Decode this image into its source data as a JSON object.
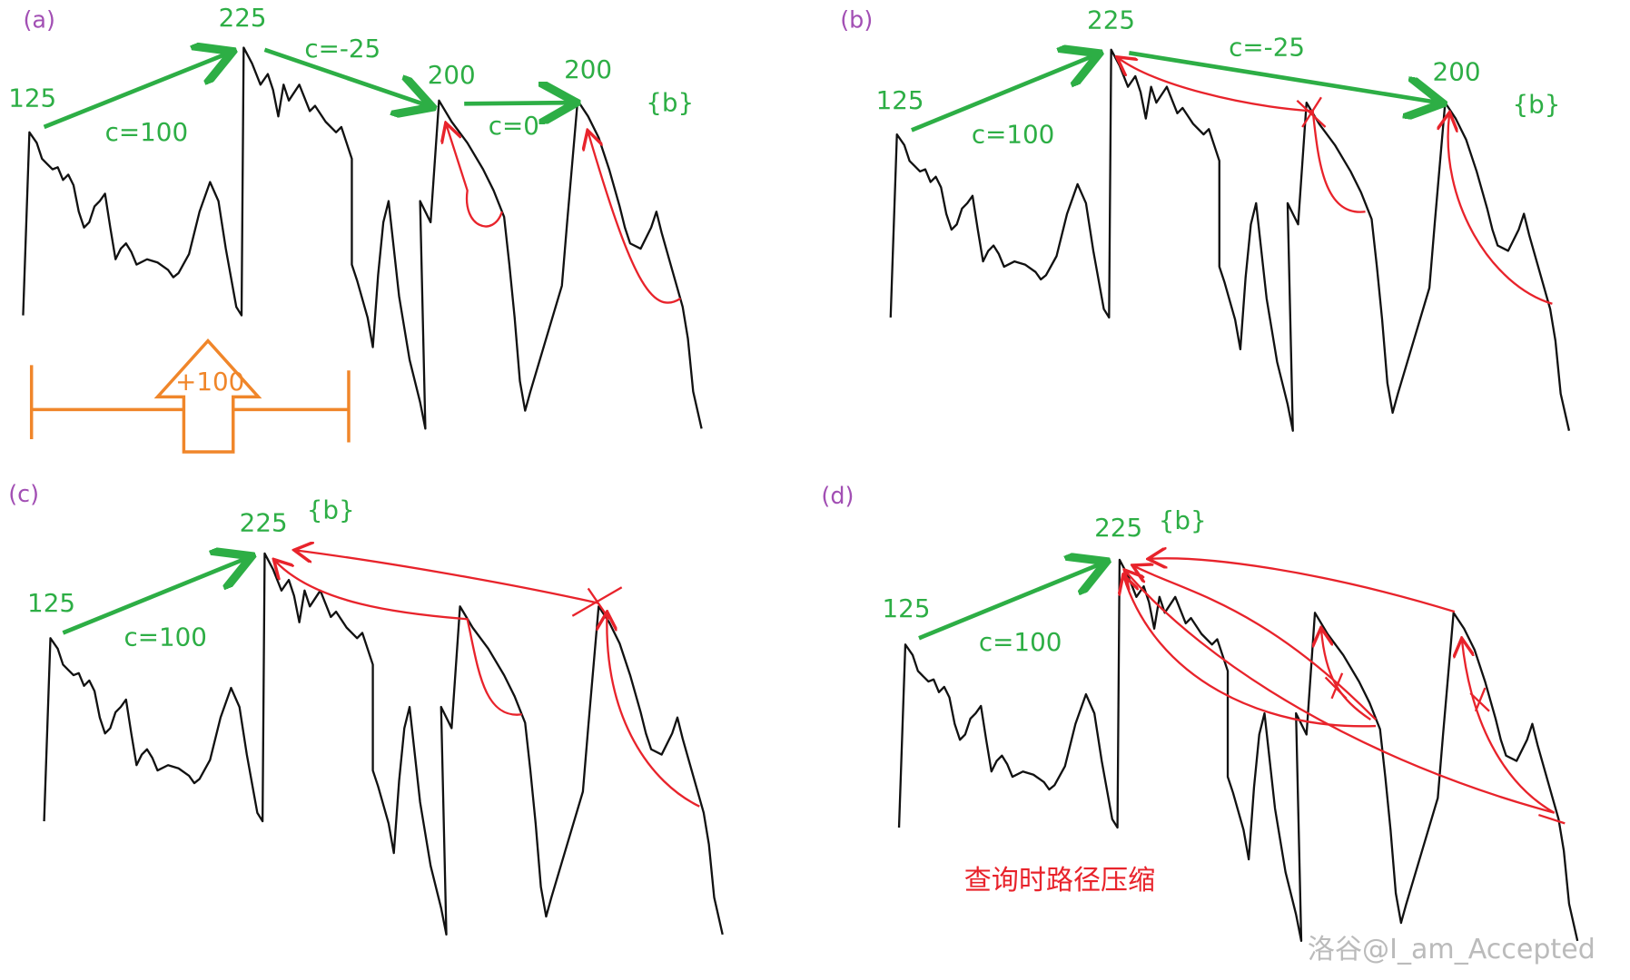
{
  "panels": [
    {
      "label": "(a)",
      "nodes": [
        "125",
        "225",
        "200",
        "200"
      ],
      "edges": [
        "c=100",
        "c=-25",
        "c=0"
      ],
      "set": "{b}",
      "increment": "+100"
    },
    {
      "label": "(b)",
      "nodes": [
        "125",
        "225",
        "200"
      ],
      "edges": [
        "c=100",
        "c=-25"
      ],
      "set": "{b}"
    },
    {
      "label": "(c)",
      "nodes": [
        "125",
        "225"
      ],
      "edges": [
        "c=100"
      ],
      "set": "{b}"
    },
    {
      "label": "(d)",
      "nodes": [
        "125",
        "225"
      ],
      "edges": [
        "c=100"
      ],
      "set": "{b}",
      "caption": "查询时路径压缩"
    }
  ],
  "watermark": "洛谷@I_am_Accepted"
}
